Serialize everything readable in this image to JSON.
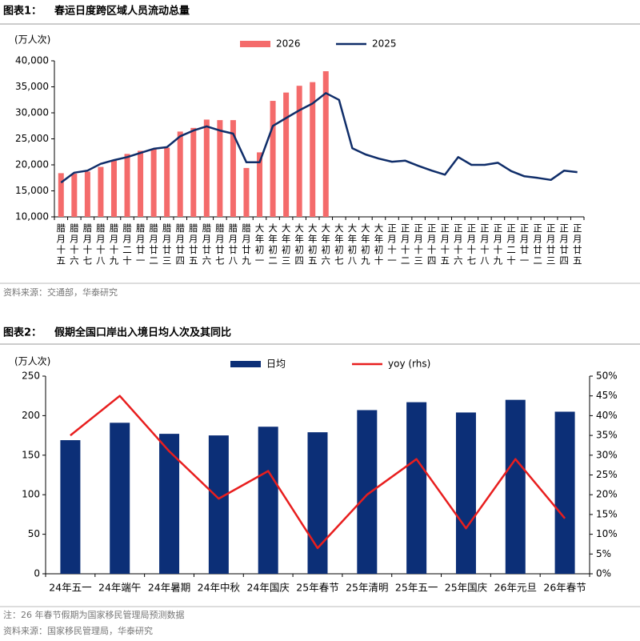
{
  "chart_data": [
    {
      "type": "bar",
      "label": "图表1：",
      "title": "春运日度跨区域人员流动总量",
      "y_label": "(万人次)",
      "categories": [
        "腊月十五",
        "腊月十六",
        "腊月十七",
        "腊月十八",
        "腊月十九",
        "腊月二十",
        "腊月廿一",
        "腊月廿二",
        "腊月廿三",
        "腊月廿四",
        "腊月廿五",
        "腊月廿六",
        "腊月廿七",
        "腊月廿八",
        "腊月廿九",
        "大年初一",
        "大年初二",
        "大年初三",
        "大年初四",
        "大年初五",
        "大年初六",
        "大年初七",
        "大年初八",
        "大年初九",
        "大年初十",
        "正月十一",
        "正月十二",
        "正月十三",
        "正月十四",
        "正月十五",
        "正月十六",
        "正月十七",
        "正月十八",
        "正月十九",
        "正月二十",
        "正月廿一",
        "正月廿二",
        "正月廿三",
        "正月廿四",
        "正月廿五"
      ],
      "series": [
        {
          "name": "2026",
          "type": "bar",
          "color": "#f46b6b",
          "values": [
            18400,
            18300,
            18700,
            19600,
            20800,
            22100,
            22700,
            23100,
            23300,
            26400,
            27100,
            28700,
            28600,
            28600,
            19400,
            22400,
            32300,
            33900,
            35200,
            35900,
            38000,
            null,
            null,
            null,
            null,
            null,
            null,
            null,
            null,
            null,
            null,
            null,
            null,
            null,
            null,
            null,
            null,
            null,
            null,
            null
          ]
        },
        {
          "name": "2025",
          "type": "line",
          "color": "#0f2d69",
          "values": [
            16600,
            18500,
            18900,
            20200,
            20900,
            21500,
            22300,
            23100,
            23400,
            25500,
            26600,
            27400,
            26600,
            26000,
            20500,
            20500,
            27500,
            29000,
            30500,
            31800,
            33800,
            32500,
            23200,
            22000,
            21200,
            20600,
            20800,
            19800,
            18900,
            18100,
            21500,
            20000,
            20000,
            20400,
            18800,
            17800,
            17500,
            17100,
            18900,
            18600
          ]
        }
      ],
      "ylim": [
        10000,
        40000
      ],
      "yticks": [
        {
          "value": 10000,
          "label": "10,000"
        },
        {
          "value": 15000,
          "label": "15,000"
        },
        {
          "value": 20000,
          "label": "20,000"
        },
        {
          "value": 25000,
          "label": "25,000"
        },
        {
          "value": 30000,
          "label": "30,000"
        },
        {
          "value": 35000,
          "label": "35,000"
        },
        {
          "value": 40000,
          "label": "40,000"
        }
      ],
      "grid": false,
      "legend": "top",
      "source": "资料来源：交通部，华泰研究"
    },
    {
      "type": "bar",
      "label": "图表2：",
      "title": "假期全国口岸出入境日均人次及其同比",
      "y_label": "(万人次)",
      "categories": [
        "24年五一",
        "24年端午",
        "24年暑期",
        "24年中秋",
        "24年国庆",
        "25年春节",
        "25年清明",
        "25年五一",
        "25年国庆",
        "26年元旦",
        "26年春节"
      ],
      "series": [
        {
          "name": "日均",
          "type": "bar",
          "color": "#0c2f77",
          "values": [
            169,
            191,
            177,
            175,
            186,
            179,
            207,
            217,
            204,
            220,
            205
          ]
        },
        {
          "name": "yoy (rhs)",
          "type": "line",
          "axis": "y2",
          "color": "#e81e1e",
          "values": [
            35,
            45,
            31,
            19,
            26,
            6.5,
            20,
            29,
            11.5,
            29,
            14
          ]
        }
      ],
      "ylim": [
        0,
        250
      ],
      "yticks": [
        0,
        50,
        100,
        150,
        200,
        250
      ],
      "y2lim": [
        0,
        50
      ],
      "y2ticks": [
        {
          "value": 0,
          "label": "0%"
        },
        {
          "value": 5,
          "label": "5%"
        },
        {
          "value": 10,
          "label": "10%"
        },
        {
          "value": 15,
          "label": "15%"
        },
        {
          "value": 20,
          "label": "20%"
        },
        {
          "value": 25,
          "label": "25%"
        },
        {
          "value": 30,
          "label": "30%"
        },
        {
          "value": 35,
          "label": "35%"
        },
        {
          "value": 40,
          "label": "40%"
        },
        {
          "value": 45,
          "label": "45%"
        },
        {
          "value": 50,
          "label": "50%"
        }
      ],
      "grid": false,
      "legend": "top",
      "note": "注：26 年春节假期为国家移民管理局预测数据",
      "source": "资料来源：国家移民管理局，华泰研究"
    }
  ]
}
